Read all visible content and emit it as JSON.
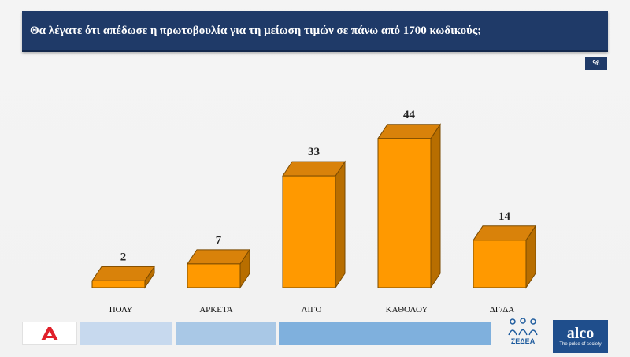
{
  "title": "Θα λέγατε ότι απέδωσε η πρωτοβουλία για τη μείωση τιμών σε πάνω από 1700 κωδικούς;",
  "unit_badge": "%",
  "chart_data": {
    "type": "bar",
    "categories": [
      "ΠΟΛΥ",
      "ΑΡΚΕΤΑ",
      "ΛΙΓΟ",
      "ΚΑΘΟΛΟΥ",
      "ΔΓ/ΔΑ"
    ],
    "values": [
      2,
      7,
      33,
      44,
      14
    ],
    "ylim": [
      0,
      50
    ],
    "grid": false,
    "colors": {
      "front": "#ff9900",
      "top": "#d9820a",
      "side": "#b86e00",
      "edge": "#7a4a00"
    }
  },
  "footer": {
    "sedea_label": "ΣΕΔΕΑ",
    "alco_name": "alco",
    "alco_tagline": "The pulse of society",
    "strip_colors": [
      "#c7d9ee",
      "#a9c8e6",
      "#7fb0dd"
    ]
  }
}
